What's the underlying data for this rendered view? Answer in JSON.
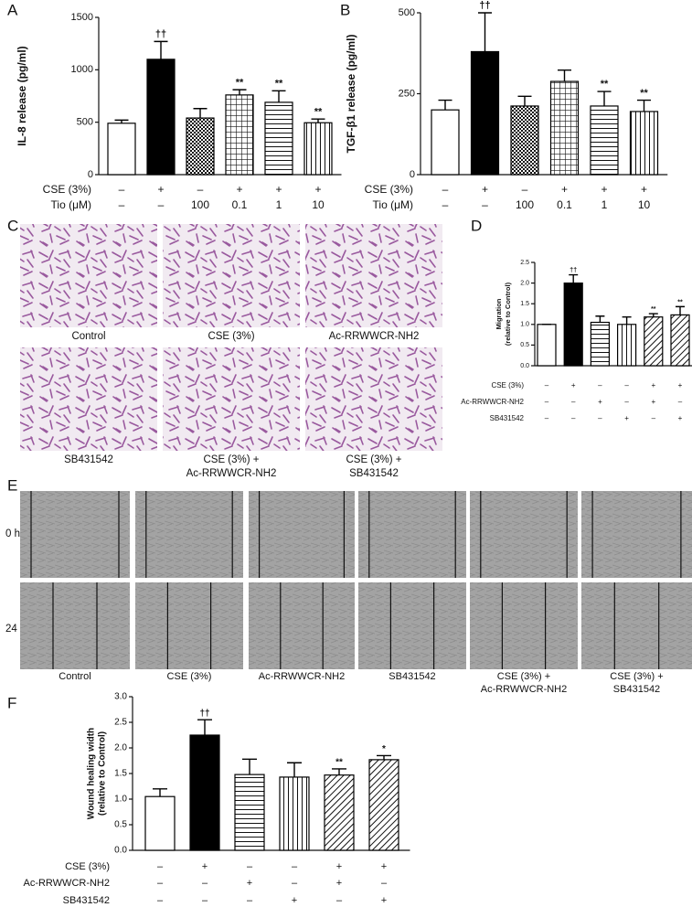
{
  "panels": [
    "A",
    "B",
    "C",
    "D",
    "E",
    "F"
  ],
  "chart_data": [
    {
      "type": "bar",
      "ylabel": [
        "IL-8 release (pg/ml)"
      ],
      "values": [
        490,
        1100,
        540,
        760,
        690,
        495
      ],
      "errors": [
        30,
        170,
        90,
        50,
        110,
        35
      ],
      "annotations": [
        null,
        "††",
        null,
        "**",
        "**",
        "**"
      ],
      "fills": [
        "white",
        "black",
        "check",
        "grid",
        "hlines",
        "vlines"
      ],
      "ylim": [
        0,
        1500
      ],
      "yticks": [
        0,
        500,
        1000,
        1500
      ],
      "treatments": [
        {
          "label": "CSE (3%)",
          "values": [
            "–",
            "+",
            "–",
            "+",
            "+",
            "+"
          ]
        },
        {
          "label": "Tio (μM)",
          "values": [
            "–",
            "–",
            "100",
            "0.1",
            "1",
            "10"
          ]
        }
      ]
    },
    {
      "type": "bar",
      "ylabel": [
        "TGF-β1 release (pg/ml)"
      ],
      "values": [
        200,
        380,
        212,
        288,
        212,
        195
      ],
      "errors": [
        30,
        120,
        30,
        35,
        45,
        35
      ],
      "annotations": [
        null,
        "††",
        null,
        null,
        "**",
        "**"
      ],
      "fills": [
        "white",
        "black",
        "check",
        "grid",
        "hlines",
        "vlines"
      ],
      "ylim": [
        0,
        500
      ],
      "yticks": [
        0,
        250,
        500
      ],
      "treatments": [
        {
          "label": "CSE (3%)",
          "values": [
            "–",
            "+",
            "–",
            "+",
            "+",
            "+"
          ]
        },
        {
          "label": "Tio (μM)",
          "values": [
            "–",
            "–",
            "100",
            "0.1",
            "1",
            "10"
          ]
        }
      ]
    },
    {
      "type": "bar",
      "ylabel": [
        "Migration",
        "(relative to Control)"
      ],
      "values": [
        1.0,
        2.0,
        1.05,
        1.0,
        1.18,
        1.23
      ],
      "errors": [
        0,
        0.2,
        0.15,
        0.18,
        0.08,
        0.2
      ],
      "annotations": [
        null,
        "††",
        null,
        null,
        "**",
        "**"
      ],
      "fills": [
        "white",
        "black",
        "hlines",
        "vlines",
        "diag",
        "diag"
      ],
      "ylim": [
        0,
        2.5
      ],
      "yticks": [
        {
          "value": 0,
          "label": "0.0"
        },
        0.5,
        {
          "value": 1,
          "label": "1.0"
        },
        1.5,
        {
          "value": 2,
          "label": "2.0"
        },
        2.5
      ],
      "treatments": [
        {
          "label": "CSE (3%)",
          "values": [
            "–",
            "+",
            "–",
            "–",
            "+",
            "+"
          ]
        },
        {
          "label": "Ac-RRWWCR-NH2",
          "values": [
            "–",
            "–",
            "+",
            "–",
            "+",
            "–"
          ]
        },
        {
          "label": "SB431542",
          "values": [
            "–",
            "–",
            "–",
            "+",
            "–",
            "+"
          ]
        }
      ]
    },
    {
      "type": "bar",
      "ylabel": [
        "Wound healing width",
        "(relative to Control)"
      ],
      "values": [
        1.05,
        2.25,
        1.48,
        1.43,
        1.47,
        1.77
      ],
      "errors": [
        0.15,
        0.3,
        0.3,
        0.28,
        0.12,
        0.08
      ],
      "annotations": [
        null,
        "††",
        null,
        null,
        "**",
        "*"
      ],
      "fills": [
        "white",
        "black",
        "hlines",
        "vlines",
        "diag",
        "diag"
      ],
      "ylim": [
        0,
        3
      ],
      "yticks": [
        {
          "value": 0,
          "label": "0.0"
        },
        0.5,
        {
          "value": 1,
          "label": "1.0"
        },
        1.5,
        {
          "value": 2,
          "label": "2.0"
        },
        2.5,
        {
          "value": 3,
          "label": "3.0"
        }
      ],
      "treatments": [
        {
          "label": "CSE (3%)",
          "values": [
            "–",
            "+",
            "–",
            "–",
            "+",
            "+"
          ]
        },
        {
          "label": "Ac-RRWWCR-NH2",
          "values": [
            "–",
            "–",
            "+",
            "–",
            "+",
            "–"
          ]
        },
        {
          "label": "SB431542",
          "values": [
            "–",
            "–",
            "–",
            "+",
            "–",
            "+"
          ]
        }
      ]
    }
  ],
  "migration_images": {
    "labels": [
      [
        "Control"
      ],
      [
        "CSE (3%)"
      ],
      [
        "Ac-RRWWCR-NH2"
      ],
      [
        "SB431542"
      ],
      [
        "CSE (3%) +",
        "Ac-RRWWCR-NH2"
      ],
      [
        "CSE (3%) +",
        "SB431542"
      ]
    ]
  },
  "wound_images": {
    "rows": [
      "0 h",
      "24 h"
    ],
    "labels": [
      [
        "Control"
      ],
      [
        "CSE (3%)"
      ],
      [
        "Ac-RRWWCR-NH2"
      ],
      [
        "SB431542"
      ],
      [
        "CSE (3%) +",
        "Ac-RRWWCR-NH2"
      ],
      [
        "CSE (3%) +",
        "SB431542"
      ]
    ]
  }
}
